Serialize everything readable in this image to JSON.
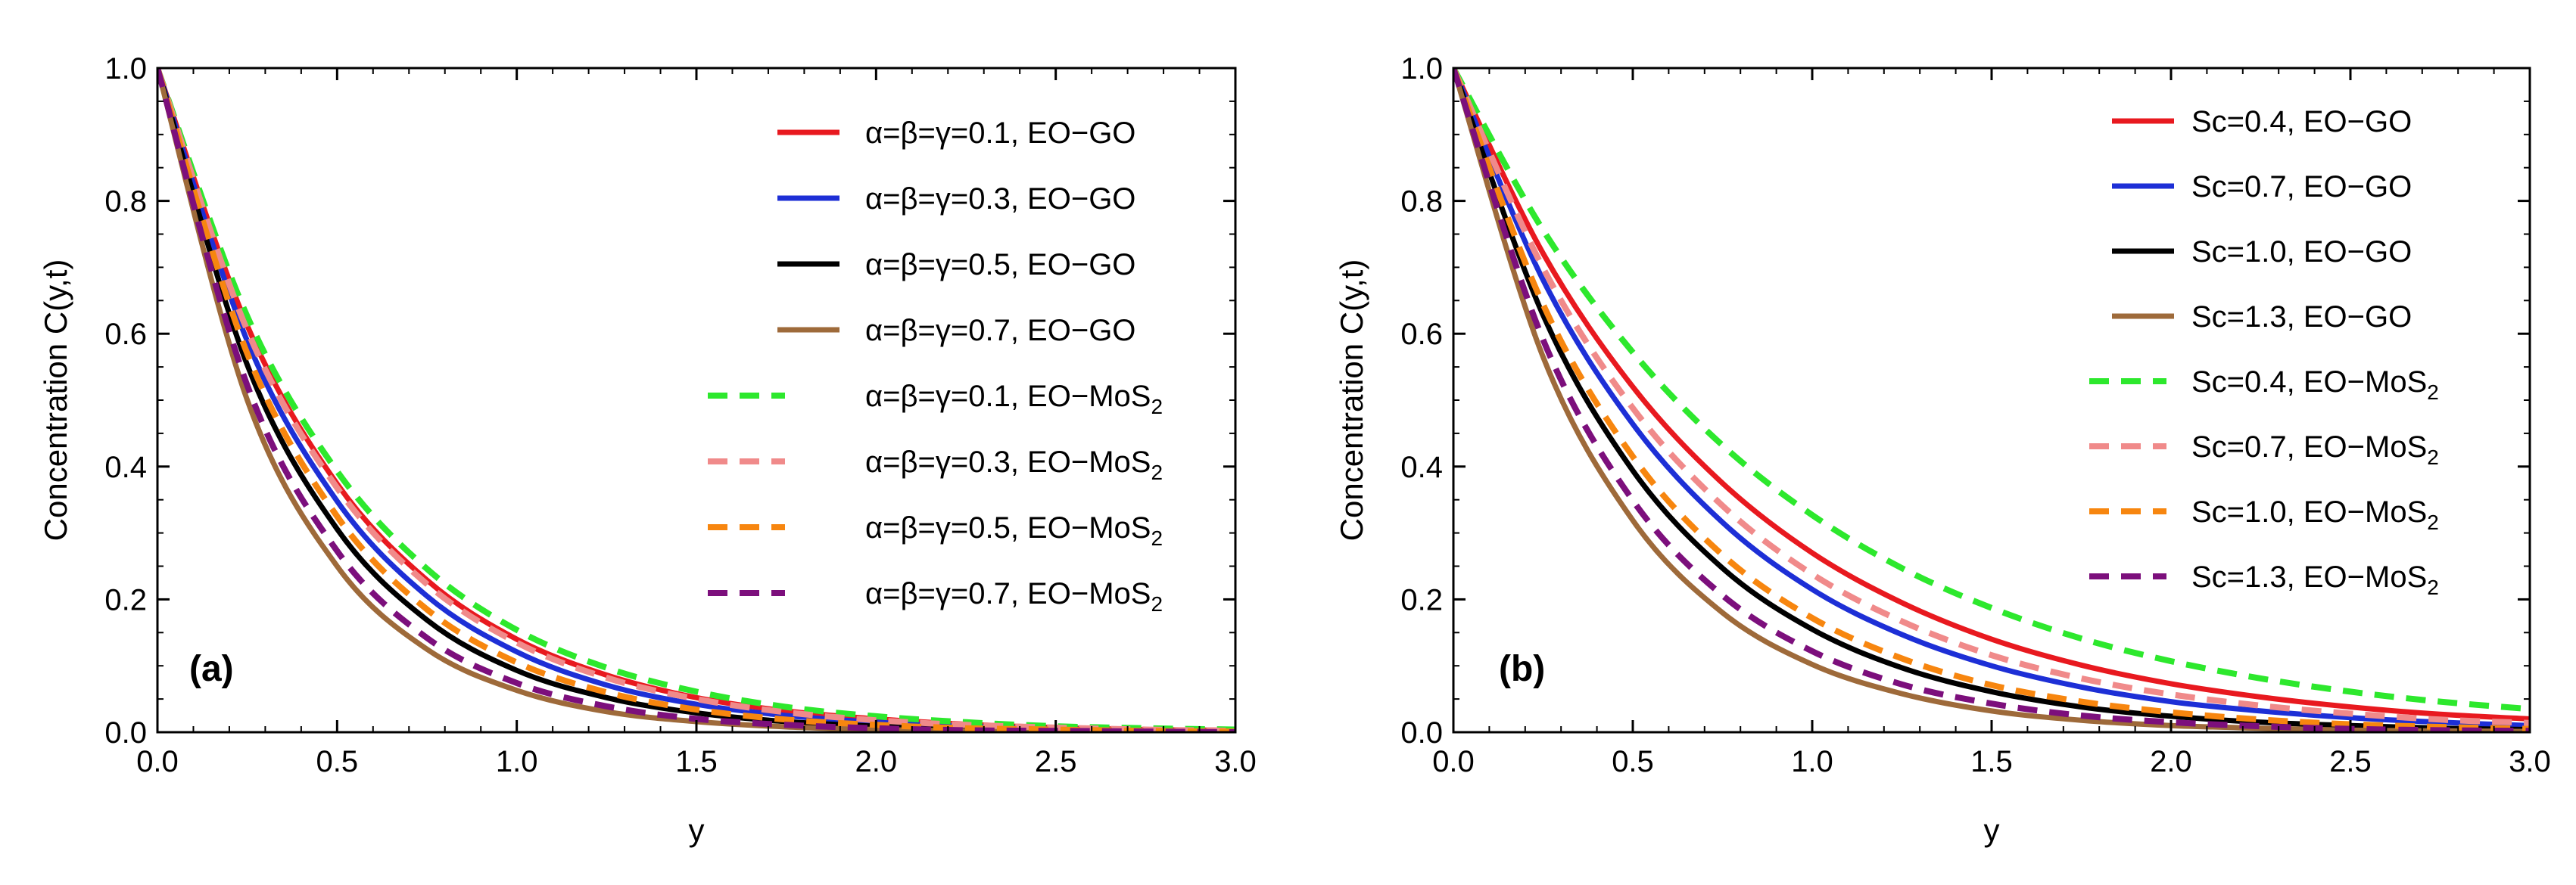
{
  "chart_data": [
    {
      "type": "line",
      "panel_label": "(a)",
      "xlabel": "y",
      "ylabel": "Concentration C(y,t)",
      "xlim": [
        0,
        3
      ],
      "ylim": [
        0,
        1
      ],
      "xticks": [
        "0.0",
        "0.5",
        "1.0",
        "1.5",
        "2.0",
        "2.5",
        "3.0"
      ],
      "yticks": [
        "0.0",
        "0.2",
        "0.4",
        "0.6",
        "0.8",
        "1.0"
      ],
      "legend_position": "top-right",
      "x": [
        0.0,
        0.25,
        0.5,
        0.75,
        1.0,
        1.25,
        1.5,
        1.75,
        2.0,
        2.25,
        2.5,
        2.75,
        3.0
      ],
      "series": [
        {
          "name": "α=β=γ=0.1, EO−GO",
          "color": "#e8191f",
          "dash": "solid",
          "values": [
            1.0,
            0.612,
            0.374,
            0.229,
            0.14,
            0.086,
            0.052,
            0.032,
            0.02,
            0.012,
            0.007,
            0.004,
            0.003
          ]
        },
        {
          "name": "α=β=γ=0.3, EO−GO",
          "color": "#1d2fd6",
          "dash": "solid",
          "values": [
            1.0,
            0.589,
            0.348,
            0.205,
            0.121,
            0.071,
            0.042,
            0.025,
            0.015,
            0.009,
            0.005,
            0.003,
            0.002
          ]
        },
        {
          "name": "α=β=γ=0.5, EO−GO",
          "color": "#000000",
          "dash": "solid",
          "values": [
            1.0,
            0.553,
            0.306,
            0.169,
            0.093,
            0.052,
            0.029,
            0.016,
            0.009,
            0.005,
            0.003,
            0.002,
            0.001
          ]
        },
        {
          "name": "α=β=γ=0.7, EO−GO",
          "color": "#9e6a3a",
          "dash": "solid",
          "values": [
            1.0,
            0.5,
            0.25,
            0.125,
            0.063,
            0.031,
            0.016,
            0.008,
            0.004,
            0.002,
            0.001,
            0.0,
            0.0
          ]
        },
        {
          "name": "α=β=γ=0.1, EO−MoS2",
          "color": "#2de82d",
          "dash": "dashed",
          "values": [
            1.0,
            0.626,
            0.393,
            0.246,
            0.154,
            0.097,
            0.061,
            0.038,
            0.024,
            0.015,
            0.009,
            0.006,
            0.004
          ]
        },
        {
          "name": "α=β=γ=0.3, EO−MoS2",
          "color": "#f08a8a",
          "dash": "dashed",
          "values": [
            1.0,
            0.605,
            0.368,
            0.223,
            0.135,
            0.082,
            0.05,
            0.03,
            0.018,
            0.011,
            0.007,
            0.004,
            0.002
          ]
        },
        {
          "name": "α=β=γ=0.5, EO−MoS2",
          "color": "#f7860f",
          "dash": "dashed",
          "values": [
            1.0,
            0.57,
            0.325,
            0.185,
            0.105,
            0.06,
            0.034,
            0.019,
            0.011,
            0.006,
            0.004,
            0.002,
            0.001
          ]
        },
        {
          "name": "α=β=γ=0.7, EO−MoS2",
          "color": "#7c0f7c",
          "dash": "dashed",
          "values": [
            1.0,
            0.522,
            0.273,
            0.142,
            0.074,
            0.039,
            0.02,
            0.011,
            0.006,
            0.003,
            0.002,
            0.001,
            0.0
          ]
        }
      ]
    },
    {
      "type": "line",
      "panel_label": "(b)",
      "xlabel": "y",
      "ylabel": "Concentration C(y,t)",
      "xlim": [
        0,
        3
      ],
      "ylim": [
        0,
        1
      ],
      "xticks": [
        "0.0",
        "0.5",
        "1.0",
        "1.5",
        "2.0",
        "2.5",
        "3.0"
      ],
      "yticks": [
        "0.0",
        "0.2",
        "0.4",
        "0.6",
        "0.8",
        "1.0"
      ],
      "legend_position": "top-right",
      "x": [
        0.0,
        0.25,
        0.5,
        0.75,
        1.0,
        1.25,
        1.5,
        1.75,
        2.0,
        2.25,
        2.5,
        2.75,
        3.0
      ],
      "series": [
        {
          "name": "Sc=0.4, EO−GO",
          "color": "#e8191f",
          "dash": "solid",
          "values": [
            1.0,
            0.721,
            0.52,
            0.375,
            0.27,
            0.195,
            0.14,
            0.101,
            0.073,
            0.053,
            0.038,
            0.027,
            0.02
          ]
        },
        {
          "name": "Sc=0.7, EO−GO",
          "color": "#1d2fd6",
          "dash": "solid",
          "values": [
            1.0,
            0.681,
            0.464,
            0.316,
            0.215,
            0.147,
            0.1,
            0.068,
            0.046,
            0.032,
            0.022,
            0.015,
            0.01
          ]
        },
        {
          "name": "Sc=1.0, EO−GO",
          "color": "#000000",
          "dash": "solid",
          "values": [
            1.0,
            0.628,
            0.394,
            0.247,
            0.155,
            0.097,
            0.061,
            0.038,
            0.024,
            0.015,
            0.01,
            0.006,
            0.004
          ]
        },
        {
          "name": "Sc=1.3, EO−GO",
          "color": "#9e6a3a",
          "dash": "solid",
          "values": [
            1.0,
            0.565,
            0.319,
            0.18,
            0.102,
            0.058,
            0.032,
            0.018,
            0.01,
            0.006,
            0.003,
            0.002,
            0.001
          ]
        },
        {
          "name": "Sc=0.4, EO−MoS2",
          "color": "#2de82d",
          "dash": "dashed",
          "values": [
            1.0,
            0.756,
            0.572,
            0.432,
            0.327,
            0.247,
            0.187,
            0.141,
            0.107,
            0.081,
            0.061,
            0.046,
            0.035
          ]
        },
        {
          "name": "Sc=0.7, EO−MoS2",
          "color": "#f08a8a",
          "dash": "dashed",
          "values": [
            1.0,
            0.699,
            0.488,
            0.341,
            0.238,
            0.167,
            0.116,
            0.081,
            0.057,
            0.04,
            0.028,
            0.019,
            0.014
          ]
        },
        {
          "name": "Sc=1.0, EO−MoS2",
          "color": "#f7860f",
          "dash": "dashed",
          "values": [
            1.0,
            0.644,
            0.415,
            0.267,
            0.172,
            0.111,
            0.071,
            0.046,
            0.03,
            0.019,
            0.012,
            0.008,
            0.005
          ]
        },
        {
          "name": "Sc=1.3, EO−MoS2",
          "color": "#7c0f7c",
          "dash": "dashed",
          "values": [
            1.0,
            0.591,
            0.349,
            0.206,
            0.122,
            0.072,
            0.043,
            0.025,
            0.015,
            0.009,
            0.005,
            0.003,
            0.002
          ]
        }
      ]
    }
  ]
}
